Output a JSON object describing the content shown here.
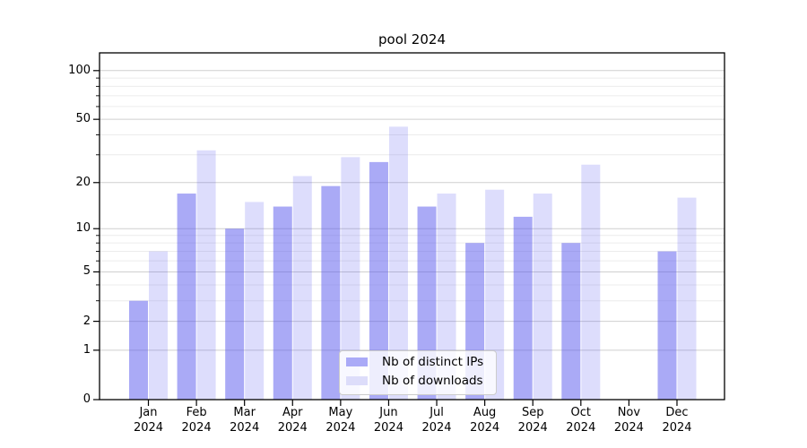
{
  "chart_data": {
    "type": "bar",
    "title": "pool 2024",
    "xlabel": "",
    "ylabel": "",
    "scale": "log1p",
    "grid": true,
    "legend_position": "lower center",
    "categories": [
      "Jan 2024",
      "Feb 2024",
      "Mar 2024",
      "Apr 2024",
      "May 2024",
      "Jun 2024",
      "Jul 2024",
      "Aug 2024",
      "Sep 2024",
      "Oct 2024",
      "Nov 2024",
      "Dec 2024"
    ],
    "series": [
      {
        "name": "Nb of distinct IPs",
        "values": [
          3,
          17,
          10,
          14,
          19,
          27,
          14,
          8,
          12,
          8,
          0,
          7
        ],
        "fill": "rgba(85,85,238,0.5)",
        "legend_color": "#aaaaf7"
      },
      {
        "name": "Nb of downloads",
        "values": [
          7,
          32,
          15,
          22,
          29,
          45,
          17,
          18,
          17,
          26,
          0,
          16
        ],
        "fill": "rgba(85,85,238,0.2)",
        "legend_color": "#ddddfa"
      }
    ],
    "yticks": [
      100,
      50,
      20,
      10,
      5,
      2,
      1,
      0
    ],
    "minor_gridline_values": [
      3,
      4,
      6,
      7,
      8,
      9,
      30,
      40,
      60,
      70,
      80,
      90
    ],
    "major_gridline_values": [
      1,
      2,
      5,
      10,
      20,
      50,
      100
    ],
    "ylim": [
      0,
      129
    ],
    "colors": {
      "bar_base": "#5555ee",
      "major_grid": "#cfcfcf",
      "minor_grid": "#ececec",
      "axis": "#000000",
      "legend_border": "#cccccc"
    }
  }
}
